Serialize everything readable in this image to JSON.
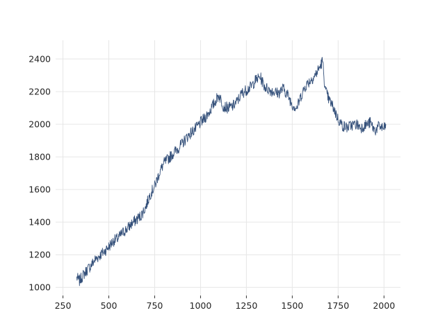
{
  "chart_data": {
    "type": "line",
    "title": "",
    "xlabel": "",
    "ylabel": "",
    "xlim": [
      210,
      2090
    ],
    "ylim": [
      950,
      2515
    ],
    "x_ticks": [
      250,
      500,
      750,
      1000,
      1250,
      1500,
      1750,
      2000
    ],
    "y_ticks": [
      1000,
      1200,
      1400,
      1600,
      1800,
      2000,
      2200,
      2400
    ],
    "grid": true,
    "legend": "none",
    "series": [
      {
        "color": "#34507a",
        "x": [
          325,
          340,
          360,
          380,
          400,
          425,
          450,
          475,
          500,
          525,
          550,
          575,
          600,
          625,
          650,
          675,
          700,
          725,
          750,
          775,
          800,
          825,
          850,
          875,
          900,
          925,
          950,
          975,
          1000,
          1025,
          1050,
          1075,
          1100,
          1125,
          1150,
          1175,
          1200,
          1225,
          1250,
          1275,
          1300,
          1325,
          1350,
          1375,
          1400,
          1425,
          1450,
          1475,
          1500,
          1525,
          1550,
          1575,
          1600,
          1625,
          1650,
          1665,
          1680,
          1700,
          1725,
          1750,
          1775,
          1800,
          1825,
          1850,
          1875,
          1900,
          1925,
          1950,
          1975,
          2000,
          2010
        ],
        "y": [
          1060,
          1040,
          1075,
          1105,
          1130,
          1170,
          1195,
          1220,
          1250,
          1285,
          1300,
          1335,
          1360,
          1390,
          1415,
          1440,
          1490,
          1570,
          1620,
          1700,
          1760,
          1790,
          1820,
          1850,
          1880,
          1920,
          1950,
          1975,
          2010,
          2040,
          2080,
          2130,
          2180,
          2110,
          2100,
          2110,
          2140,
          2190,
          2210,
          2230,
          2270,
          2290,
          2230,
          2210,
          2200,
          2190,
          2220,
          2180,
          2120,
          2100,
          2180,
          2240,
          2270,
          2300,
          2350,
          2390,
          2210,
          2150,
          2100,
          2030,
          1990,
          1980,
          1995,
          2000,
          1980,
          1995,
          2010,
          1960,
          1990,
          1970,
          2000
        ]
      }
    ]
  }
}
